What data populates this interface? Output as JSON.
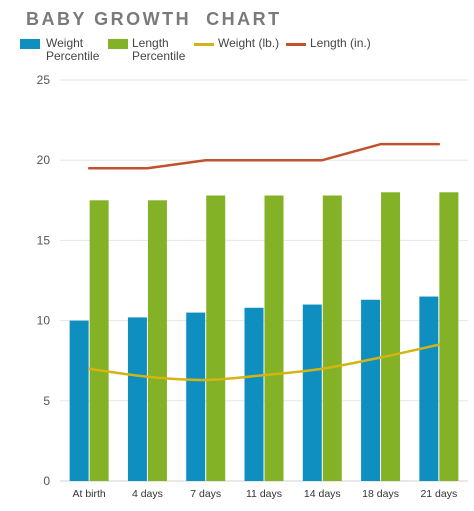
{
  "chart_data": {
    "type": "bar",
    "title": "BABY GROWTH  CHART",
    "categories": [
      "At birth",
      "4 days",
      "7 days",
      "11 days",
      "14 days",
      "18 days",
      "21 days"
    ],
    "series": [
      {
        "name": "Weight Percentile",
        "kind": "bar",
        "color": "#0f8fbf",
        "values": [
          10,
          10.2,
          10.5,
          10.8,
          11,
          11.3,
          11.5
        ]
      },
      {
        "name": "Length Percentile",
        "kind": "bar",
        "color": "#84b227",
        "values": [
          17.5,
          17.5,
          17.8,
          17.8,
          17.8,
          18,
          18
        ]
      },
      {
        "name": "Weight (lb.)",
        "kind": "line",
        "color": "#d4b413",
        "values": [
          7,
          6.5,
          6.3,
          6.6,
          7,
          7.7,
          8.5
        ]
      },
      {
        "name": "Length (in.)",
        "kind": "line",
        "color": "#c0522d",
        "values": [
          19.5,
          19.5,
          20,
          20,
          20,
          21,
          21
        ]
      }
    ],
    "yticks": [
      0,
      5,
      10,
      15,
      20,
      25
    ],
    "ylim": [
      0,
      25
    ],
    "grid": true,
    "legend_position": "top-left"
  }
}
